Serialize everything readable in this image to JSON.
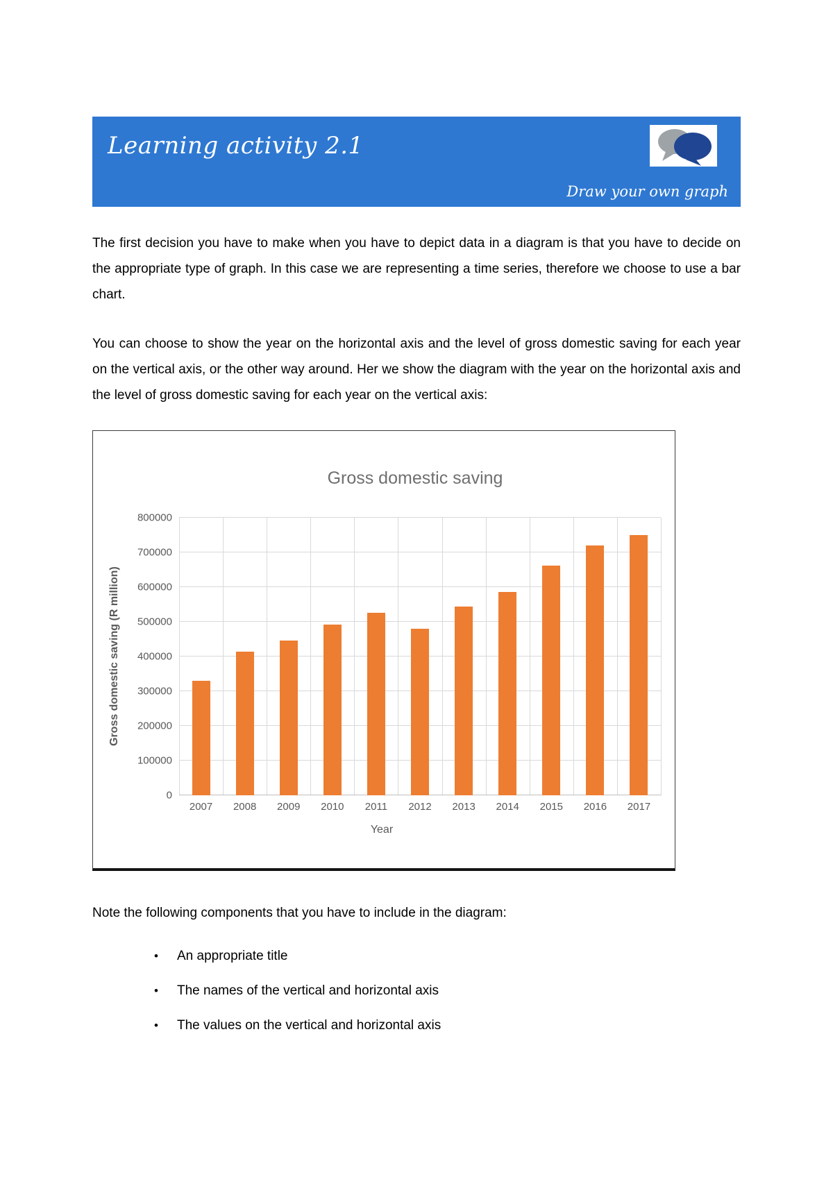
{
  "banner": {
    "title": "Learning activity 2.1",
    "subtitle": "Draw your own graph",
    "bg_color": "#2E78D2",
    "icon": "speech-bubbles-icon",
    "icon_colors": {
      "back_bubble": "#9EA3A8",
      "front_bubble": "#1F4593"
    }
  },
  "paragraphs": {
    "p1": "The first decision you have to make when you have to depict data in a diagram is that you have to decide on the appropriate type of graph. In this case we are representing a time series, therefore we choose to use a bar chart.",
    "p2": "You can choose to show the year on the horizontal axis and the level of gross domestic saving for each year on the vertical axis, or the other way around. Her we show the diagram with the year on the horizontal axis and the level of gross domestic saving for each year on the vertical axis:",
    "note": "Note the following components that you have to include in the diagram:"
  },
  "bullets": [
    "An appropriate title",
    "The names of the vertical and horizontal axis",
    "The values on the vertical and horizontal axis"
  ],
  "chart_data": {
    "type": "bar",
    "title": "Gross domestic saving",
    "xlabel": "Year",
    "ylabel": "Gross domestic saving (R million)",
    "categories": [
      "2007",
      "2008",
      "2009",
      "2010",
      "2011",
      "2012",
      "2013",
      "2014",
      "2015",
      "2016",
      "2017"
    ],
    "values": [
      330000,
      415000,
      447000,
      492000,
      527000,
      480000,
      545000,
      586000,
      662000,
      720000,
      750000
    ],
    "ylim": [
      0,
      800000
    ],
    "ytick_step": 100000,
    "yticks": [
      0,
      100000,
      200000,
      300000,
      400000,
      500000,
      600000,
      700000,
      800000
    ],
    "bar_color": "#ED7D31",
    "grid": "horizontal and vertical major gridlines",
    "legend": "none"
  }
}
